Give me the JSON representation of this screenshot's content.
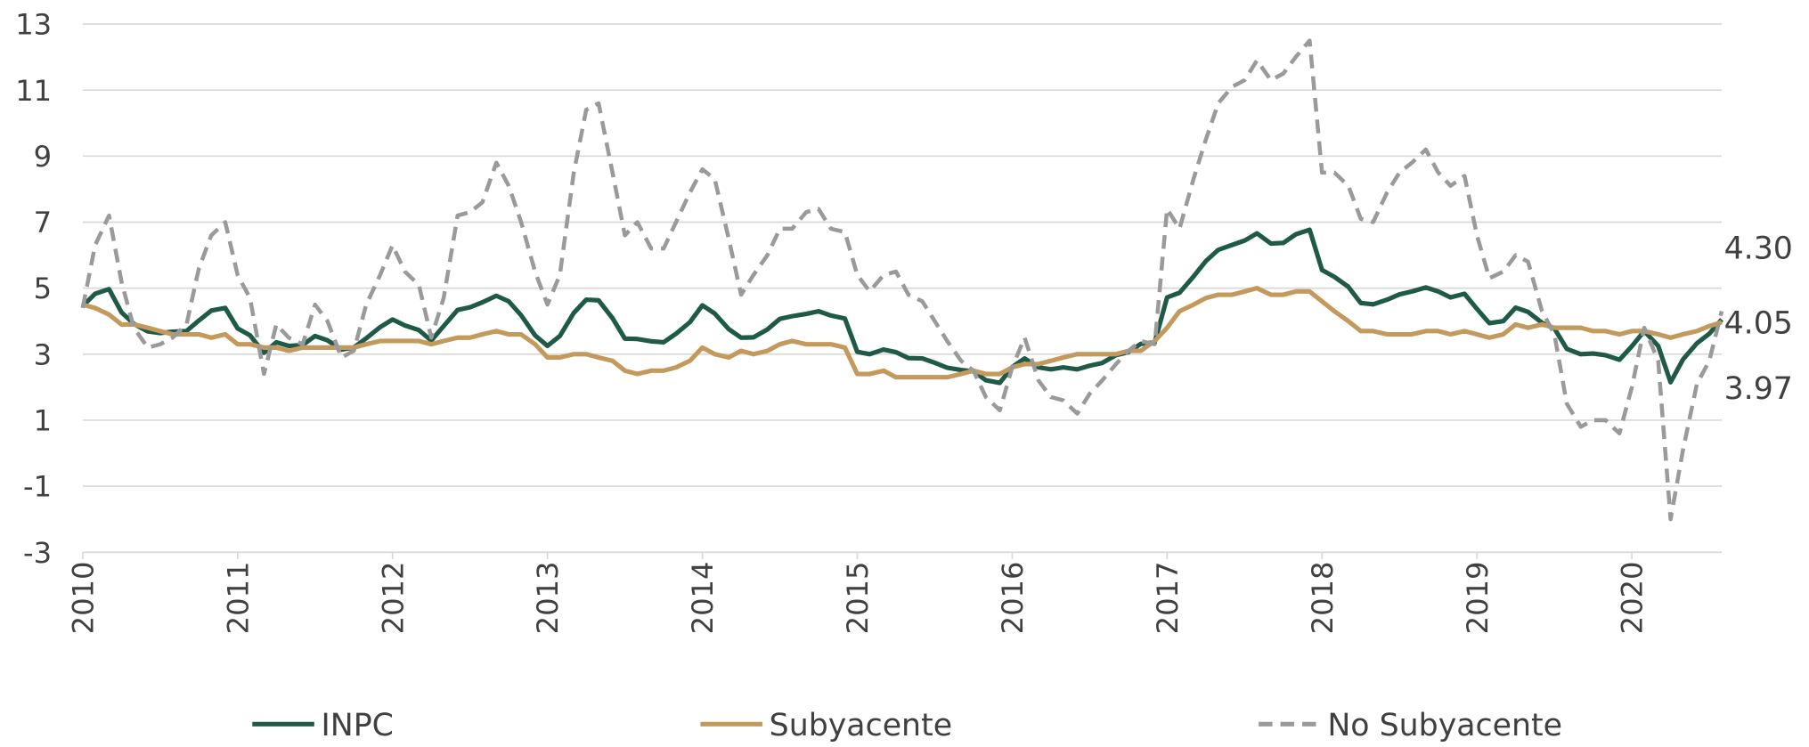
{
  "chart_data": {
    "type": "line",
    "x": [
      2010.0,
      2010.08,
      2010.17,
      2010.25,
      2010.33,
      2010.42,
      2010.5,
      2010.58,
      2010.67,
      2010.75,
      2010.83,
      2010.92,
      2011.0,
      2011.08,
      2011.17,
      2011.25,
      2011.33,
      2011.42,
      2011.5,
      2011.58,
      2011.67,
      2011.75,
      2011.83,
      2011.92,
      2012.0,
      2012.08,
      2012.17,
      2012.25,
      2012.33,
      2012.42,
      2012.5,
      2012.58,
      2012.67,
      2012.75,
      2012.83,
      2012.92,
      2013.0,
      2013.08,
      2013.17,
      2013.25,
      2013.33,
      2013.42,
      2013.5,
      2013.58,
      2013.67,
      2013.75,
      2013.83,
      2013.92,
      2014.0,
      2014.08,
      2014.17,
      2014.25,
      2014.33,
      2014.42,
      2014.5,
      2014.58,
      2014.67,
      2014.75,
      2014.83,
      2014.92,
      2015.0,
      2015.08,
      2015.17,
      2015.25,
      2015.33,
      2015.42,
      2015.5,
      2015.58,
      2015.67,
      2015.75,
      2015.83,
      2015.92,
      2016.0,
      2016.08,
      2016.17,
      2016.25,
      2016.33,
      2016.42,
      2016.5,
      2016.58,
      2016.67,
      2016.75,
      2016.83,
      2016.92,
      2017.0,
      2017.08,
      2017.17,
      2017.25,
      2017.33,
      2017.42,
      2017.5,
      2017.58,
      2017.67,
      2017.75,
      2017.83,
      2017.92,
      2018.0,
      2018.08,
      2018.17,
      2018.25,
      2018.33,
      2018.42,
      2018.5,
      2018.58,
      2018.67,
      2018.75,
      2018.83,
      2018.92,
      2019.0,
      2019.08,
      2019.17,
      2019.25,
      2019.33,
      2019.42,
      2019.5,
      2019.58,
      2019.67,
      2019.75,
      2019.83,
      2019.92,
      2020.0,
      2020.08,
      2020.17,
      2020.25,
      2020.33,
      2020.42,
      2020.5,
      2020.58
    ],
    "series": [
      {
        "name": "INPC",
        "color": "#1f5a48",
        "dashed": false,
        "values": [
          4.46,
          4.83,
          4.97,
          4.27,
          3.92,
          3.69,
          3.64,
          3.68,
          3.7,
          4.02,
          4.32,
          4.4,
          3.78,
          3.57,
          3.04,
          3.36,
          3.25,
          3.28,
          3.55,
          3.42,
          3.14,
          3.2,
          3.48,
          3.82,
          4.05,
          3.87,
          3.73,
          3.41,
          3.85,
          4.34,
          4.42,
          4.57,
          4.77,
          4.6,
          4.18,
          3.57,
          3.25,
          3.55,
          4.25,
          4.65,
          4.63,
          4.09,
          3.47,
          3.46,
          3.39,
          3.36,
          3.62,
          3.97,
          4.48,
          4.23,
          3.76,
          3.5,
          3.51,
          3.75,
          4.07,
          4.15,
          4.22,
          4.3,
          4.17,
          4.08,
          3.07,
          3.0,
          3.14,
          3.06,
          2.88,
          2.87,
          2.74,
          2.59,
          2.52,
          2.48,
          2.21,
          2.13,
          2.61,
          2.87,
          2.6,
          2.54,
          2.6,
          2.54,
          2.65,
          2.73,
          2.97,
          3.06,
          3.31,
          3.36,
          4.72,
          4.86,
          5.35,
          5.82,
          6.16,
          6.31,
          6.44,
          6.66,
          6.35,
          6.37,
          6.63,
          6.77,
          5.55,
          5.34,
          5.04,
          4.55,
          4.51,
          4.65,
          4.81,
          4.9,
          5.02,
          4.9,
          4.72,
          4.83,
          4.37,
          3.94,
          4.0,
          4.41,
          4.28,
          3.95,
          3.78,
          3.16,
          3.0,
          3.02,
          2.97,
          2.83,
          3.24,
          3.7,
          3.25,
          2.15,
          2.84,
          3.33,
          3.62,
          4.05
        ],
        "value_labels": [
          null,
          null,
          null,
          null,
          null,
          null,
          null,
          null,
          null,
          null,
          null,
          null,
          null,
          null,
          null,
          null,
          null,
          null,
          null,
          null,
          null,
          null,
          null,
          null,
          null,
          null,
          null,
          null,
          null,
          null,
          null,
          null,
          null,
          null,
          null,
          null,
          null,
          null,
          null,
          null,
          null,
          null,
          null,
          null,
          null,
          null,
          null,
          null,
          null,
          null,
          null,
          null,
          null,
          null,
          null,
          null,
          null,
          null,
          null,
          null,
          null,
          null,
          null,
          null,
          null,
          null,
          null,
          null,
          null,
          null,
          null,
          null,
          null,
          null,
          null,
          null,
          null,
          null,
          null,
          null,
          null,
          null,
          null,
          null,
          null,
          null,
          null,
          null,
          null,
          null,
          null,
          null,
          null,
          null,
          null,
          null,
          null,
          null,
          null,
          null,
          null,
          null,
          null,
          null,
          null,
          null,
          null,
          null,
          null,
          null,
          null,
          null,
          null,
          null,
          null,
          null,
          null,
          null,
          null,
          null,
          null,
          null,
          null,
          null,
          null,
          null,
          null,
          "4.05"
        ]
      },
      {
        "name": "Subyacente",
        "color": "#c49a5c",
        "dashed": false,
        "values": [
          4.5,
          4.4,
          4.2,
          3.9,
          3.9,
          3.8,
          3.7,
          3.6,
          3.6,
          3.6,
          3.5,
          3.6,
          3.3,
          3.3,
          3.2,
          3.2,
          3.1,
          3.2,
          3.2,
          3.2,
          3.2,
          3.2,
          3.3,
          3.4,
          3.4,
          3.4,
          3.4,
          3.3,
          3.4,
          3.5,
          3.5,
          3.6,
          3.7,
          3.6,
          3.6,
          3.3,
          2.9,
          2.9,
          3.0,
          3.0,
          2.9,
          2.8,
          2.5,
          2.4,
          2.5,
          2.5,
          2.6,
          2.8,
          3.2,
          3.0,
          2.9,
          3.1,
          3.0,
          3.1,
          3.3,
          3.4,
          3.3,
          3.3,
          3.3,
          3.2,
          2.4,
          2.4,
          2.5,
          2.3,
          2.3,
          2.3,
          2.3,
          2.3,
          2.4,
          2.5,
          2.4,
          2.4,
          2.6,
          2.7,
          2.7,
          2.8,
          2.9,
          3.0,
          3.0,
          3.0,
          3.0,
          3.1,
          3.1,
          3.4,
          3.8,
          4.3,
          4.5,
          4.7,
          4.8,
          4.8,
          4.9,
          5.0,
          4.8,
          4.8,
          4.9,
          4.9,
          4.6,
          4.3,
          4.0,
          3.7,
          3.7,
          3.6,
          3.6,
          3.6,
          3.7,
          3.7,
          3.6,
          3.7,
          3.6,
          3.5,
          3.6,
          3.9,
          3.8,
          3.9,
          3.8,
          3.8,
          3.8,
          3.7,
          3.7,
          3.6,
          3.7,
          3.7,
          3.6,
          3.5,
          3.6,
          3.7,
          3.85,
          3.97
        ],
        "value_labels": [
          null,
          null,
          null,
          null,
          null,
          null,
          null,
          null,
          null,
          null,
          null,
          null,
          null,
          null,
          null,
          null,
          null,
          null,
          null,
          null,
          null,
          null,
          null,
          null,
          null,
          null,
          null,
          null,
          null,
          null,
          null,
          null,
          null,
          null,
          null,
          null,
          null,
          null,
          null,
          null,
          null,
          null,
          null,
          null,
          null,
          null,
          null,
          null,
          null,
          null,
          null,
          null,
          null,
          null,
          null,
          null,
          null,
          null,
          null,
          null,
          null,
          null,
          null,
          null,
          null,
          null,
          null,
          null,
          null,
          null,
          null,
          null,
          null,
          null,
          null,
          null,
          null,
          null,
          null,
          null,
          null,
          null,
          null,
          null,
          null,
          null,
          null,
          null,
          null,
          null,
          null,
          null,
          null,
          null,
          null,
          null,
          null,
          null,
          null,
          null,
          null,
          null,
          null,
          null,
          null,
          null,
          null,
          null,
          null,
          null,
          null,
          null,
          null,
          null,
          null,
          null,
          null,
          null,
          null,
          null,
          null,
          null,
          null,
          null,
          null,
          null,
          null,
          "3.97"
        ]
      },
      {
        "name": "No Subyacente",
        "color": "#9a9a9a",
        "dashed": true,
        "values": [
          4.4,
          6.3,
          7.2,
          5.2,
          3.8,
          3.2,
          3.3,
          3.5,
          3.9,
          5.6,
          6.6,
          7.0,
          5.4,
          4.7,
          2.4,
          3.9,
          3.5,
          3.3,
          4.5,
          4.0,
          2.9,
          3.1,
          4.5,
          5.4,
          6.3,
          5.5,
          5.1,
          3.5,
          4.7,
          7.2,
          7.3,
          7.6,
          8.8,
          8.1,
          7.0,
          5.5,
          4.5,
          5.4,
          8.5,
          10.4,
          10.6,
          8.5,
          6.6,
          7.0,
          6.2,
          6.2,
          7.0,
          7.9,
          8.6,
          8.3,
          6.5,
          4.8,
          5.4,
          6.0,
          6.8,
          6.8,
          7.3,
          7.4,
          6.8,
          6.7,
          5.4,
          4.9,
          5.4,
          5.5,
          4.8,
          4.6,
          4.0,
          3.4,
          2.8,
          2.5,
          1.7,
          1.3,
          2.6,
          3.5,
          2.2,
          1.7,
          1.6,
          1.2,
          1.8,
          2.2,
          2.7,
          3.1,
          3.4,
          3.3,
          7.4,
          6.8,
          8.3,
          9.5,
          10.6,
          11.1,
          11.3,
          11.9,
          11.3,
          11.5,
          12.0,
          12.5,
          8.5,
          8.5,
          8.1,
          7.1,
          7.0,
          7.9,
          8.5,
          8.8,
          9.2,
          8.5,
          8.1,
          8.4,
          6.6,
          5.3,
          5.5,
          6.0,
          5.8,
          4.3,
          3.6,
          1.5,
          0.8,
          1.0,
          1.0,
          0.6,
          2.0,
          3.8,
          2.8,
          -2.0,
          0.1,
          2.1,
          2.8,
          4.3
        ],
        "value_labels": [
          null,
          null,
          null,
          null,
          null,
          null,
          null,
          null,
          null,
          null,
          null,
          null,
          null,
          null,
          null,
          null,
          null,
          null,
          null,
          null,
          null,
          null,
          null,
          null,
          null,
          null,
          null,
          null,
          null,
          null,
          null,
          null,
          null,
          null,
          null,
          null,
          null,
          null,
          null,
          null,
          null,
          null,
          null,
          null,
          null,
          null,
          null,
          null,
          null,
          null,
          null,
          null,
          null,
          null,
          null,
          null,
          null,
          null,
          null,
          null,
          null,
          null,
          null,
          null,
          null,
          null,
          null,
          null,
          null,
          null,
          null,
          null,
          null,
          null,
          null,
          null,
          null,
          null,
          null,
          null,
          null,
          null,
          null,
          null,
          null,
          null,
          null,
          null,
          null,
          null,
          null,
          null,
          null,
          null,
          null,
          null,
          null,
          null,
          null,
          null,
          null,
          null,
          null,
          null,
          null,
          null,
          null,
          null,
          null,
          null,
          null,
          null,
          null,
          null,
          null,
          null,
          null,
          null,
          null,
          null,
          null,
          null,
          null,
          null,
          null,
          null,
          null,
          "4.30"
        ]
      }
    ],
    "xlim": [
      2010,
      2020.58
    ],
    "xticks": [
      2010,
      2011,
      2012,
      2013,
      2014,
      2015,
      2016,
      2017,
      2018,
      2019,
      2020
    ],
    "ylim": [
      -3,
      13
    ],
    "yticks": [
      -3,
      -1,
      1,
      3,
      5,
      7,
      9,
      11,
      13
    ],
    "grid": true,
    "legend": "bottom"
  }
}
